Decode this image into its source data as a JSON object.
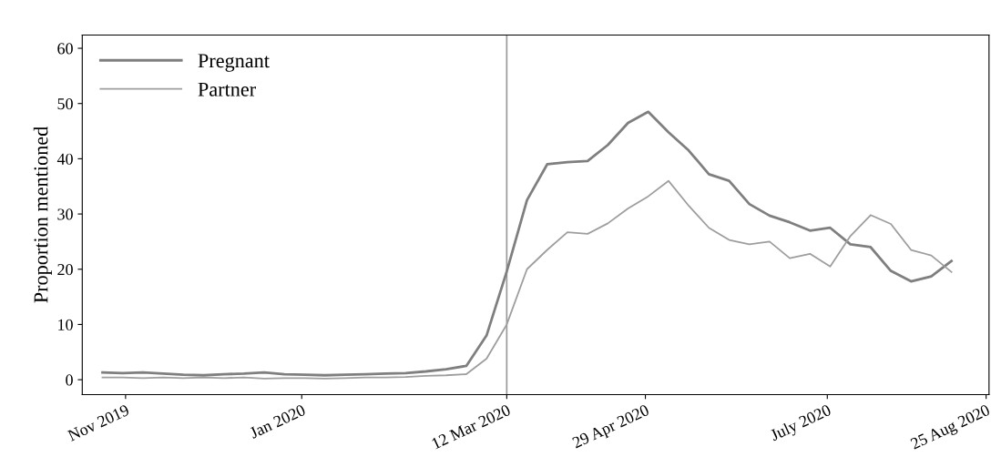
{
  "chart_data": {
    "type": "line",
    "ylabel": "Proportion mentioned",
    "x": [
      "2019-10-24",
      "2019-10-31",
      "2019-11-07",
      "2019-11-14",
      "2019-11-21",
      "2019-11-28",
      "2019-12-05",
      "2019-12-12",
      "2019-12-19",
      "2019-12-26",
      "2020-01-02",
      "2020-01-09",
      "2020-01-16",
      "2020-01-23",
      "2020-01-30",
      "2020-02-06",
      "2020-02-13",
      "2020-02-20",
      "2020-02-27",
      "2020-03-05",
      "2020-03-12",
      "2020-03-19",
      "2020-03-26",
      "2020-04-02",
      "2020-04-09",
      "2020-04-16",
      "2020-04-23",
      "2020-04-30",
      "2020-05-07",
      "2020-05-14",
      "2020-05-21",
      "2020-05-28",
      "2020-06-04",
      "2020-06-11",
      "2020-06-18",
      "2020-06-25",
      "2020-07-02",
      "2020-07-09",
      "2020-07-16",
      "2020-07-23",
      "2020-07-30",
      "2020-08-06",
      "2020-08-13"
    ],
    "series": [
      {
        "name": "Pregnant",
        "color": "#7f7f7f",
        "values": [
          1.3,
          1.2,
          1.3,
          1.1,
          0.9,
          0.8,
          1.0,
          1.1,
          1.3,
          1.0,
          0.9,
          0.8,
          0.9,
          1.0,
          1.1,
          1.2,
          1.5,
          1.9,
          2.5,
          8,
          19.6,
          32.5,
          39,
          39.4,
          39.6,
          42.5,
          46.5,
          48.5,
          44.8,
          41.5,
          37.2,
          36,
          31.8,
          29.7,
          28.5,
          27,
          27.5,
          24.5,
          24,
          19.7,
          17.8,
          18.7,
          21.5
        ]
      },
      {
        "name": "Partner",
        "color": "#9e9e9e",
        "values": [
          0.4,
          0.4,
          0.3,
          0.4,
          0.3,
          0.4,
          0.3,
          0.4,
          0.2,
          0.3,
          0.3,
          0.2,
          0.3,
          0.4,
          0.4,
          0.5,
          0.7,
          0.8,
          1.0,
          3.8,
          10,
          20,
          23.5,
          26.7,
          26.4,
          28.3,
          31,
          33.2,
          36,
          31.5,
          27.5,
          25.3,
          24.5,
          25,
          22,
          22.8,
          20.5,
          26,
          29.8,
          28.2,
          23.5,
          22.5,
          19.5
        ]
      }
    ],
    "xlim": [
      "2019-10-17",
      "2020-08-26"
    ],
    "xticks": [
      {
        "value": "2019-11-01",
        "label": "Nov 2019"
      },
      {
        "value": "2020-01-01",
        "label": "Jan 2020"
      },
      {
        "value": "2020-03-12",
        "label": "12 Mar 2020"
      },
      {
        "value": "2020-04-29",
        "label": "29 Apr 2020"
      },
      {
        "value": "2020-07-01",
        "label": "July 2020"
      },
      {
        "value": "2020-08-25",
        "label": "25 Aug 2020"
      }
    ],
    "ylim": [
      -2.7,
      62.4
    ],
    "yticks": [
      0,
      10,
      20,
      30,
      40,
      50,
      60
    ],
    "ref_lines": [
      {
        "axis": "x",
        "value": "2020-03-12",
        "label": null,
        "color": "#999999"
      }
    ],
    "grid": false,
    "legend": "top left",
    "line_style": "solid",
    "marker": "none"
  }
}
